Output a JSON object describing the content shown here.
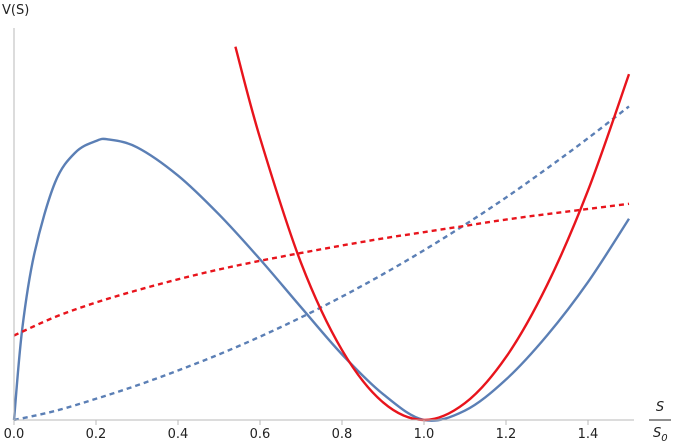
{
  "chart_data": {
    "type": "line",
    "title": "",
    "ylabel": "V(S)",
    "xlabel_numerator": "S",
    "xlabel_denominator_base": "S",
    "xlabel_denominator_sub": "0",
    "xlim": [
      0,
      1.5
    ],
    "ylim": [
      0,
      1.0
    ],
    "x_ticks": [
      "0.0",
      "0.2",
      "0.4",
      "0.6",
      "0.8",
      "1.0",
      "1.2",
      "1.4"
    ],
    "x_tick_values": [
      0,
      0.2,
      0.4,
      0.6,
      0.8,
      1.0,
      1.2,
      1.4
    ],
    "grid": false,
    "legend": "none",
    "series": [
      {
        "style": "solid",
        "color": "#5b7fb5",
        "x": [
          0,
          0.02,
          0.05,
          0.1,
          0.15,
          0.2,
          0.23,
          0.3,
          0.4,
          0.5,
          0.6,
          0.7,
          0.8,
          0.9,
          1.0,
          1.1,
          1.2,
          1.3,
          1.4,
          1.5
        ],
        "y": [
          0.0,
          0.231,
          0.425,
          0.604,
          0.681,
          0.71,
          0.714,
          0.694,
          0.622,
          0.523,
          0.409,
          0.287,
          0.167,
          0.066,
          0.0,
          0.024,
          0.103,
          0.215,
          0.351,
          0.512
        ]
      },
      {
        "style": "dashed",
        "color": "#5b7fb5",
        "x": [
          0.0,
          0.1,
          0.2,
          0.3,
          0.4,
          0.5,
          0.6,
          0.7,
          0.8,
          0.9,
          1.0,
          1.1,
          1.2,
          1.3,
          1.4,
          1.5
        ],
        "y": [
          0.0,
          0.023,
          0.054,
          0.088,
          0.126,
          0.167,
          0.212,
          0.261,
          0.314,
          0.371,
          0.432,
          0.497,
          0.566,
          0.64,
          0.717,
          0.798
        ]
      },
      {
        "style": "solid",
        "color": "#e8141c",
        "x": [
          0.54,
          0.6,
          0.7,
          0.8,
          0.9,
          1.0,
          1.1,
          1.2,
          1.3,
          1.4,
          1.5
        ],
        "y": [
          0.95,
          0.718,
          0.4,
          0.178,
          0.045,
          0.0,
          0.043,
          0.16,
          0.343,
          0.584,
          0.88
        ]
      },
      {
        "style": "dashed",
        "color": "#e8141c",
        "x": [
          0.0,
          0.1,
          0.2,
          0.3,
          0.4,
          0.5,
          0.6,
          0.7,
          0.8,
          0.9,
          1.0,
          1.1,
          1.2,
          1.3,
          1.4,
          1.5
        ],
        "y": [
          0.215,
          0.262,
          0.299,
          0.33,
          0.358,
          0.383,
          0.405,
          0.425,
          0.444,
          0.462,
          0.478,
          0.494,
          0.51,
          0.524,
          0.537,
          0.55
        ]
      }
    ]
  }
}
